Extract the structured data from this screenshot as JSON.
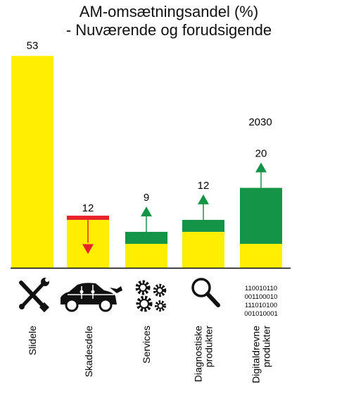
{
  "chart_data": {
    "type": "bar",
    "title_lines": [
      "AM-omsætningsandel (%)",
      "- Nuværende og forudsigende"
    ],
    "categories": [
      "Slidele",
      "Skadesdele",
      "Services",
      "Diagnostiske produkter",
      "Digitaldrevne produkter"
    ],
    "category_lines": [
      [
        "Slidele"
      ],
      [
        "Skadesdele"
      ],
      [
        "Services"
      ],
      [
        "Diagnostiske",
        "produkter"
      ],
      [
        "Digitaldrevne",
        "produkter"
      ]
    ],
    "series": [
      {
        "name": "current",
        "color": "#ffee00",
        "values": [
          53,
          12,
          6,
          9,
          6
        ]
      },
      {
        "name": "2030",
        "color": "#149447",
        "values": [
          53,
          10.5,
          9,
          12,
          20
        ]
      }
    ],
    "value_labels": [
      "53",
      "12",
      "9",
      "12",
      "20"
    ],
    "trend": [
      "none",
      "down",
      "up",
      "up",
      "up"
    ],
    "year_label": "2030",
    "binary_text": [
      "110010110",
      "001100010",
      "111010100",
      "001010001"
    ],
    "icons": [
      "wrench-screwdriver-icon",
      "car-puzzle-icon",
      "gears-icon",
      "magnifier-icon",
      "binary-code-icon"
    ],
    "colors": {
      "current": "#ffee00",
      "growth": "#149447",
      "decline": "#e8232a"
    },
    "ylim": [
      0,
      55
    ]
  }
}
